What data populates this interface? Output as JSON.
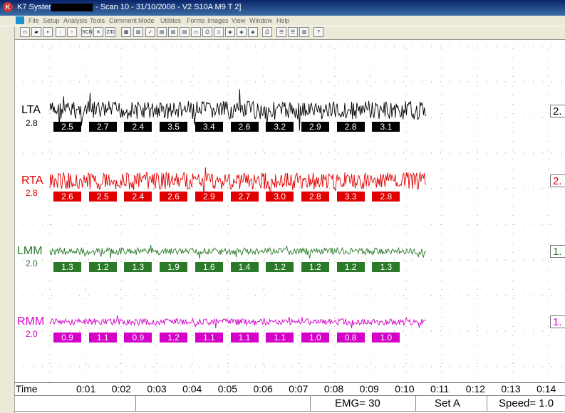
{
  "window": {
    "title_app": "K7 System",
    "title_rest": "- Scan 10 - 31/10/2008 - V2 S10A  M9  T 2]"
  },
  "menu": [
    "File",
    "Setup",
    "Analysis",
    "Tools",
    "Comment",
    "Mode",
    "Utilities",
    "Forms",
    "Images",
    "View",
    "Window",
    "Help"
  ],
  "toolbar": [
    {
      "name": "new-file-icon",
      "glyph": "▭"
    },
    {
      "name": "open-folder-icon",
      "glyph": "▰"
    },
    {
      "name": "save-icon",
      "glyph": "▪"
    },
    {
      "name": "arrow-down-icon",
      "glyph": "↓"
    },
    {
      "name": "arrow-up-icon",
      "glyph": "↑"
    },
    {
      "name": "scan-icon",
      "glyph": "SCN"
    },
    {
      "name": "cursor-tool-icon",
      "glyph": "✕"
    },
    {
      "name": "zoom-door-icon",
      "glyph": "Z/D"
    },
    {
      "name": "grid-icon",
      "glyph": "▦"
    },
    {
      "name": "bars-icon",
      "glyph": "▥"
    },
    {
      "name": "check-icon",
      "glyph": "✓"
    },
    {
      "name": "window-1-icon",
      "glyph": "▤"
    },
    {
      "name": "window-2-icon",
      "glyph": "▤"
    },
    {
      "name": "window-3-icon",
      "glyph": "▤"
    },
    {
      "name": "window-4-icon",
      "glyph": "▭"
    },
    {
      "name": "print-icon",
      "glyph": "⎙"
    },
    {
      "name": "page-icon",
      "glyph": "▯"
    },
    {
      "name": "tool-a-icon",
      "glyph": "◈"
    },
    {
      "name": "tool-b-icon",
      "glyph": "◈"
    },
    {
      "name": "tool-c-icon",
      "glyph": "◈"
    },
    {
      "name": "printer-icon",
      "glyph": "⎙"
    },
    {
      "name": "layout-1-icon",
      "glyph": "☰"
    },
    {
      "name": "layout-2-icon",
      "glyph": "☰"
    },
    {
      "name": "layout-3-icon",
      "glyph": "▥"
    },
    {
      "name": "help-icon",
      "glyph": "?"
    }
  ],
  "channels": [
    {
      "name": "LTA",
      "value": "2.8",
      "color": "#000000",
      "segments": [
        "2.5",
        "2.7",
        "2.4",
        "3.5",
        "3.4",
        "2.6",
        "3.2",
        "2.9",
        "2.8",
        "3.1"
      ],
      "right": "2."
    },
    {
      "name": "RTA",
      "value": "2.8",
      "color": "#e00000",
      "segments": [
        "2.6",
        "2.5",
        "2.4",
        "2.6",
        "2.9",
        "2.7",
        "3.0",
        "2.8",
        "3.3",
        "2.8"
      ],
      "right": "2."
    },
    {
      "name": "LMM",
      "value": "2.0",
      "color": "#2a7a2a",
      "segments": [
        "1.3",
        "1.2",
        "1.3",
        "1.9",
        "1.6",
        "1.4",
        "1.2",
        "1.2",
        "1.2",
        "1.3"
      ],
      "right": "1."
    },
    {
      "name": "RMM",
      "value": "2.0",
      "color": "#d400c8",
      "segments": [
        "0.9",
        "1.1",
        "0.9",
        "1.2",
        "1.1",
        "1.1",
        "1.1",
        "1.0",
        "0.8",
        "1.0"
      ],
      "right": "1."
    }
  ],
  "time_axis": {
    "label": "Time",
    "ticks": [
      "0:01",
      "0:02",
      "0:03",
      "0:04",
      "0:05",
      "0:06",
      "0:07",
      "0:08",
      "0:09",
      "0:10",
      "0:11",
      "0:12",
      "0:13",
      "0:14"
    ]
  },
  "status": {
    "emg": "EMG= 30",
    "set": "Set A",
    "speed": "Speed= 1.0"
  }
}
